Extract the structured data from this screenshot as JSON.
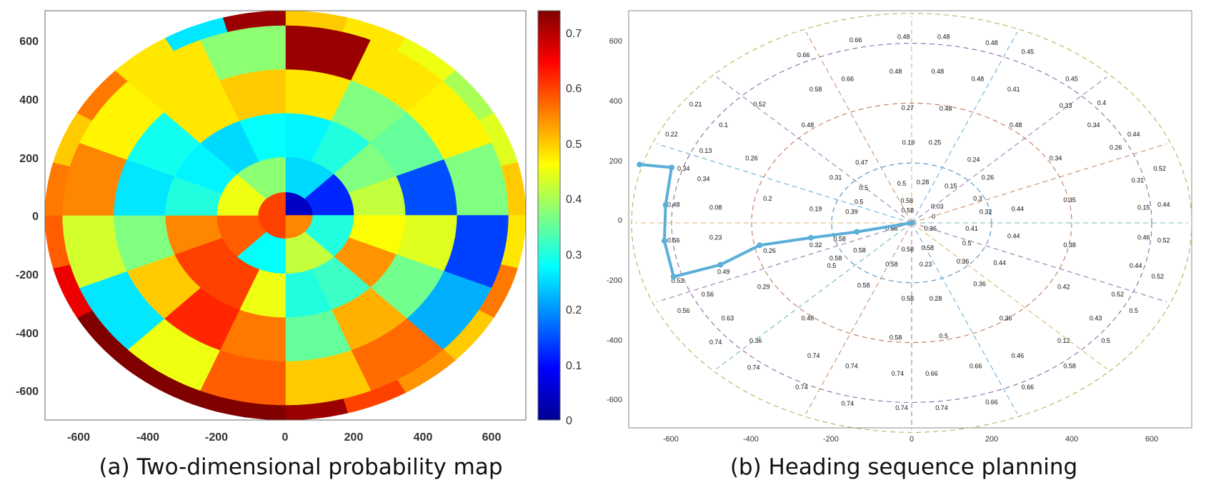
{
  "captions": {
    "a": "(a) Two-dimensional probability map",
    "b": "(b) Heading sequence planning"
  },
  "colorbar": {
    "ticks": [
      "0",
      "0.1",
      "0.2",
      "0.3",
      "0.4",
      "0.5",
      "0.6",
      "0.7"
    ],
    "max": 0.74
  },
  "chart_data": [
    {
      "type": "heatmap",
      "title": "",
      "colormap": "jet",
      "coordinates": "polar sectors (radius, angle in degrees measured from +y axis clockwise)",
      "x_ticks": [
        "-600",
        "-400",
        "-200",
        "0",
        "200",
        "400",
        "600"
      ],
      "y_ticks": [
        "600",
        "400",
        "200",
        "0",
        "-200",
        "-400",
        "-600"
      ],
      "xlim": [
        -700,
        700
      ],
      "ylim": [
        -700,
        700
      ],
      "rings": [
        {
          "r": [
            0,
            80
          ],
          "n": 4,
          "values": [
            0.05,
            0.55,
            0.6,
            0.6
          ]
        },
        {
          "r": [
            80,
            200
          ],
          "n": 8,
          "values": [
            0.25,
            0.12,
            0.3,
            0.42,
            0.28,
            0.58,
            0.45,
            0.38
          ]
        },
        {
          "r": [
            200,
            350
          ],
          "n": 16,
          "values": [
            0.27,
            0.3,
            0.37,
            0.42,
            0.46,
            0.54,
            0.32,
            0.3,
            0.45,
            0.6,
            0.6,
            0.55,
            0.3,
            0.27,
            0.25,
            0.28
          ]
        },
        {
          "r": [
            350,
            500
          ],
          "n": 16,
          "values": [
            0.48,
            0.37,
            0.35,
            0.15,
            0.44,
            0.36,
            0.52,
            0.35,
            0.56,
            0.62,
            0.5,
            0.37,
            0.26,
            0.29,
            0.48,
            0.5
          ]
        },
        {
          "r": [
            500,
            650
          ],
          "n": 16,
          "values": [
            0.72,
            0.48,
            0.47,
            0.37,
            0.14,
            0.22,
            0.57,
            0.5,
            0.58,
            0.45,
            0.26,
            0.43,
            0.55,
            0.47,
            0.48,
            0.38
          ]
        },
        {
          "r": [
            650,
            700
          ],
          "n": 24,
          "values": [
            0.5,
            0.48,
            0.45,
            0.4,
            0.44,
            0.5,
            0.48,
            0.56,
            0.5,
            0.54,
            0.6,
            0.72,
            0.74,
            0.74,
            0.74,
            0.74,
            0.66,
            0.58,
            0.56,
            0.5,
            0.56,
            0.48,
            0.26,
            0.72
          ]
        }
      ]
    },
    {
      "type": "scatter",
      "title": "",
      "x_ticks": [
        "-600",
        "-400",
        "-200",
        "0",
        "200",
        "400",
        "600"
      ],
      "y_ticks": [
        "600",
        "400",
        "200",
        "0",
        "-200",
        "-400",
        "-600"
      ],
      "xlim": [
        -700,
        700
      ],
      "ylim": [
        -700,
        700
      ],
      "ring_radii": [
        200,
        400,
        600
      ],
      "grid": "dashed polar rings and radial spokes",
      "path": {
        "points": [
          [
            0,
            0
          ],
          [
            -137,
            -30
          ],
          [
            -252,
            -50
          ],
          [
            -380,
            -75
          ],
          [
            -478,
            -140
          ],
          [
            -595,
            -180
          ],
          [
            -618,
            -60
          ],
          [
            -615,
            60
          ],
          [
            -600,
            185
          ],
          [
            -680,
            195
          ]
        ],
        "color": "#5aaed8"
      },
      "cell_labels": [
        {
          "text": "0.03",
          "x": 64,
          "y": 54
        },
        {
          "text": "0",
          "x": 55,
          "y": 20
        },
        {
          "text": "0.58",
          "x": -12,
          "y": 73
        },
        {
          "text": "0.58",
          "x": -10,
          "y": 40
        },
        {
          "text": "0.58",
          "x": -50,
          "y": -20
        },
        {
          "text": "0.58",
          "x": -10,
          "y": -90
        },
        {
          "text": "0.58",
          "x": 40,
          "y": -85
        },
        {
          "text": "0.36",
          "x": 47,
          "y": -20
        },
        {
          "text": "0.28",
          "x": 28,
          "y": 135
        },
        {
          "text": "0.15",
          "x": 98,
          "y": 122
        },
        {
          "text": "0.5",
          "x": -25,
          "y": 130
        },
        {
          "text": "0.5",
          "x": -120,
          "y": 115
        },
        {
          "text": "0.5",
          "x": -132,
          "y": 69
        },
        {
          "text": "0.39",
          "x": -150,
          "y": 35
        },
        {
          "text": "0.19",
          "x": -240,
          "y": 45
        },
        {
          "text": "0.3",
          "x": 165,
          "y": 80
        },
        {
          "text": "0.32",
          "x": 185,
          "y": 35
        },
        {
          "text": "0.41",
          "x": 150,
          "y": -20
        },
        {
          "text": "0.5",
          "x": 138,
          "y": -70
        },
        {
          "text": "0.36",
          "x": 128,
          "y": -130
        },
        {
          "text": "0.23",
          "x": 35,
          "y": -140
        },
        {
          "text": "0.58",
          "x": -50,
          "y": -140
        },
        {
          "text": "0.58",
          "x": -130,
          "y": -93
        },
        {
          "text": "0.58",
          "x": -180,
          "y": -55
        },
        {
          "text": "0.58",
          "x": -190,
          "y": -120
        },
        {
          "text": "0.19",
          "x": -8,
          "y": 267
        },
        {
          "text": "0.25",
          "x": 58,
          "y": 267
        },
        {
          "text": "0.47",
          "x": -125,
          "y": 200
        },
        {
          "text": "0.31",
          "x": -190,
          "y": 150
        },
        {
          "text": "0.24",
          "x": 155,
          "y": 210
        },
        {
          "text": "0.26",
          "x": 190,
          "y": 150
        },
        {
          "text": "0.44",
          "x": 265,
          "y": 45
        },
        {
          "text": "0.44",
          "x": 255,
          "y": -45
        },
        {
          "text": "0.44",
          "x": 220,
          "y": -135
        },
        {
          "text": "0.36",
          "x": 170,
          "y": -205
        },
        {
          "text": "0.28",
          "x": 60,
          "y": -255
        },
        {
          "text": "0.58",
          "x": -10,
          "y": -255
        },
        {
          "text": "0.58",
          "x": -120,
          "y": -210
        },
        {
          "text": "0.5",
          "x": -200,
          "y": -145
        },
        {
          "text": "0.27",
          "x": -10,
          "y": 383
        },
        {
          "text": "0.48",
          "x": 85,
          "y": 380
        },
        {
          "text": "0.48",
          "x": -260,
          "y": 325
        },
        {
          "text": "0.26",
          "x": -400,
          "y": 215
        },
        {
          "text": "0.2",
          "x": -360,
          "y": 80
        },
        {
          "text": "0.08",
          "x": -490,
          "y": 50
        },
        {
          "text": "0.23",
          "x": -490,
          "y": -50
        },
        {
          "text": "0.29",
          "x": -370,
          "y": -215
        },
        {
          "text": "0.48",
          "x": -260,
          "y": -320
        },
        {
          "text": "0.58",
          "x": -40,
          "y": -385
        },
        {
          "text": "0.5",
          "x": 80,
          "y": -380
        },
        {
          "text": "0.36",
          "x": 235,
          "y": -320
        },
        {
          "text": "0.42",
          "x": 380,
          "y": -215
        },
        {
          "text": "0.38",
          "x": 395,
          "y": -75
        },
        {
          "text": "0.35",
          "x": 395,
          "y": 75
        },
        {
          "text": "0.34",
          "x": 360,
          "y": 215
        },
        {
          "text": "0.48",
          "x": 260,
          "y": 325
        },
        {
          "text": "0.58",
          "x": -240,
          "y": 445
        },
        {
          "text": "0.66",
          "x": -160,
          "y": 480
        },
        {
          "text": "0.48",
          "x": -40,
          "y": 505
        },
        {
          "text": "0.48",
          "x": 65,
          "y": 505
        },
        {
          "text": "0.48",
          "x": 165,
          "y": 480
        },
        {
          "text": "0.41",
          "x": 255,
          "y": 445
        },
        {
          "text": "0.33",
          "x": 385,
          "y": 390
        },
        {
          "text": "0.34",
          "x": 455,
          "y": 325
        },
        {
          "text": "0.26",
          "x": 510,
          "y": 250
        },
        {
          "text": "0.31",
          "x": 565,
          "y": 140
        },
        {
          "text": "0.15",
          "x": 580,
          "y": 50
        },
        {
          "text": "0.46",
          "x": 580,
          "y": -50
        },
        {
          "text": "0.44",
          "x": 560,
          "y": -145
        },
        {
          "text": "0.52",
          "x": 515,
          "y": -240
        },
        {
          "text": "0.43",
          "x": 460,
          "y": -320
        },
        {
          "text": "0.12",
          "x": 380,
          "y": -395
        },
        {
          "text": "0.46",
          "x": 265,
          "y": -445
        },
        {
          "text": "0.66",
          "x": 160,
          "y": -480
        },
        {
          "text": "0.66",
          "x": 50,
          "y": -505
        },
        {
          "text": "0.74",
          "x": -35,
          "y": -505
        },
        {
          "text": "0.74",
          "x": -150,
          "y": -480
        },
        {
          "text": "0.74",
          "x": -245,
          "y": -445
        },
        {
          "text": "0.36",
          "x": -390,
          "y": -395
        },
        {
          "text": "0.63",
          "x": -460,
          "y": -320
        },
        {
          "text": "0.56",
          "x": -510,
          "y": -240
        },
        {
          "text": "0.49",
          "x": -470,
          "y": -165
        },
        {
          "text": "0.34",
          "x": -520,
          "y": 145
        },
        {
          "text": "0.13",
          "x": -515,
          "y": 240
        },
        {
          "text": "0.1",
          "x": -470,
          "y": 325
        },
        {
          "text": "0.52",
          "x": -380,
          "y": 395
        },
        {
          "text": "0.66",
          "x": -140,
          "y": 610
        },
        {
          "text": "0.66",
          "x": -270,
          "y": 560
        },
        {
          "text": "0.48",
          "x": -20,
          "y": 620
        },
        {
          "text": "0.48",
          "x": 80,
          "y": 620
        },
        {
          "text": "0.48",
          "x": 200,
          "y": 600
        },
        {
          "text": "0.45",
          "x": 290,
          "y": 570
        },
        {
          "text": "0.45",
          "x": 400,
          "y": 480
        },
        {
          "text": "0.4",
          "x": 475,
          "y": 400
        },
        {
          "text": "0.44",
          "x": 555,
          "y": 295
        },
        {
          "text": "0.52",
          "x": 620,
          "y": 180
        },
        {
          "text": "0.44",
          "x": 630,
          "y": 60
        },
        {
          "text": "0.52",
          "x": 630,
          "y": -60
        },
        {
          "text": "0.52",
          "x": 615,
          "y": -180
        },
        {
          "text": "0.5",
          "x": 555,
          "y": -295
        },
        {
          "text": "0.5",
          "x": 485,
          "y": -395
        },
        {
          "text": "0.58",
          "x": 395,
          "y": -480
        },
        {
          "text": "0.66",
          "x": 290,
          "y": -550
        },
        {
          "text": "0.66",
          "x": 200,
          "y": -600
        },
        {
          "text": "0.74",
          "x": 75,
          "y": -620
        },
        {
          "text": "0.74",
          "x": -25,
          "y": -620
        },
        {
          "text": "0.74",
          "x": -160,
          "y": -605
        },
        {
          "text": "0.74",
          "x": -275,
          "y": -550
        },
        {
          "text": "0.74",
          "x": -395,
          "y": -485
        },
        {
          "text": "0.74",
          "x": -490,
          "y": -400
        },
        {
          "text": "0.56",
          "x": -570,
          "y": -295
        },
        {
          "text": "0.21",
          "x": -540,
          "y": 395
        },
        {
          "text": "0.22",
          "x": -600,
          "y": 295
        },
        {
          "text": "0.34",
          "x": -570,
          "y": 180
        },
        {
          "text": "0.48",
          "x": -595,
          "y": 60
        },
        {
          "text": "0.56",
          "x": -595,
          "y": -60
        },
        {
          "text": "0.53",
          "x": -585,
          "y": -195
        },
        {
          "text": "0.26",
          "x": -355,
          "y": -95
        },
        {
          "text": "0.32",
          "x": -240,
          "y": -75
        }
      ]
    }
  ]
}
